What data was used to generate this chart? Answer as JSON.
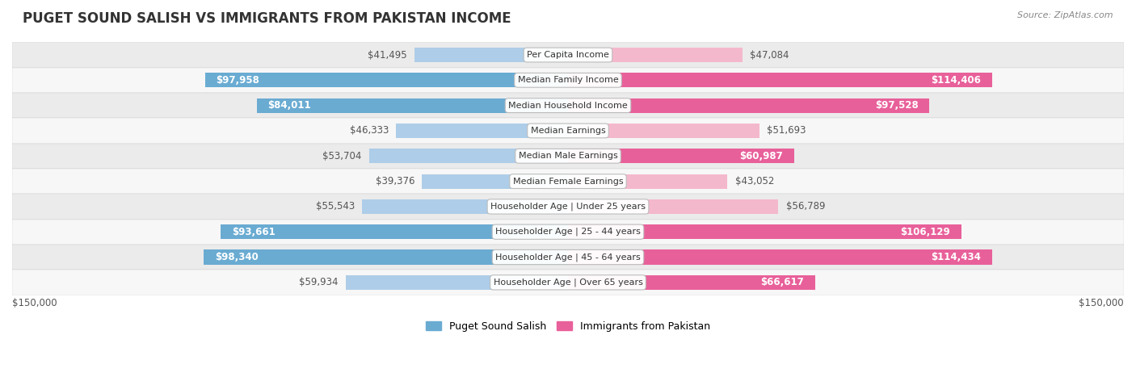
{
  "title": "PUGET SOUND SALISH VS IMMIGRANTS FROM PAKISTAN INCOME",
  "source": "Source: ZipAtlas.com",
  "categories": [
    "Per Capita Income",
    "Median Family Income",
    "Median Household Income",
    "Median Earnings",
    "Median Male Earnings",
    "Median Female Earnings",
    "Householder Age | Under 25 years",
    "Householder Age | 25 - 44 years",
    "Householder Age | 45 - 64 years",
    "Householder Age | Over 65 years"
  ],
  "salish_values": [
    41495,
    97958,
    84011,
    46333,
    53704,
    39376,
    55543,
    93661,
    98340,
    59934
  ],
  "pakistan_values": [
    47084,
    114406,
    97528,
    51693,
    60987,
    43052,
    56789,
    106129,
    114434,
    66617
  ],
  "salish_labels": [
    "$41,495",
    "$97,958",
    "$84,011",
    "$46,333",
    "$53,704",
    "$39,376",
    "$55,543",
    "$93,661",
    "$98,340",
    "$59,934"
  ],
  "pakistan_labels": [
    "$47,084",
    "$114,406",
    "$97,528",
    "$51,693",
    "$60,987",
    "$43,052",
    "$56,789",
    "$106,129",
    "$114,434",
    "$66,617"
  ],
  "salish_color_light": "#aecde8",
  "salish_color_dark": "#6aabd2",
  "pakistan_color_light": "#f4b8cc",
  "pakistan_color_dark": "#e8609a",
  "salish_threshold": 60000,
  "pakistan_threshold": 60000,
  "max_value": 150000,
  "bar_height": 0.58,
  "bg_row_even": "#ebebeb",
  "bg_row_odd": "#f7f7f7",
  "legend_salish": "Puget Sound Salish",
  "legend_pakistan": "Immigrants from Pakistan",
  "xlabel_left": "$150,000",
  "xlabel_right": "$150,000",
  "label_inside_color": "#ffffff",
  "label_outside_color": "#555555",
  "label_fontsize": 8.5,
  "cat_fontsize": 8.0,
  "title_fontsize": 12
}
